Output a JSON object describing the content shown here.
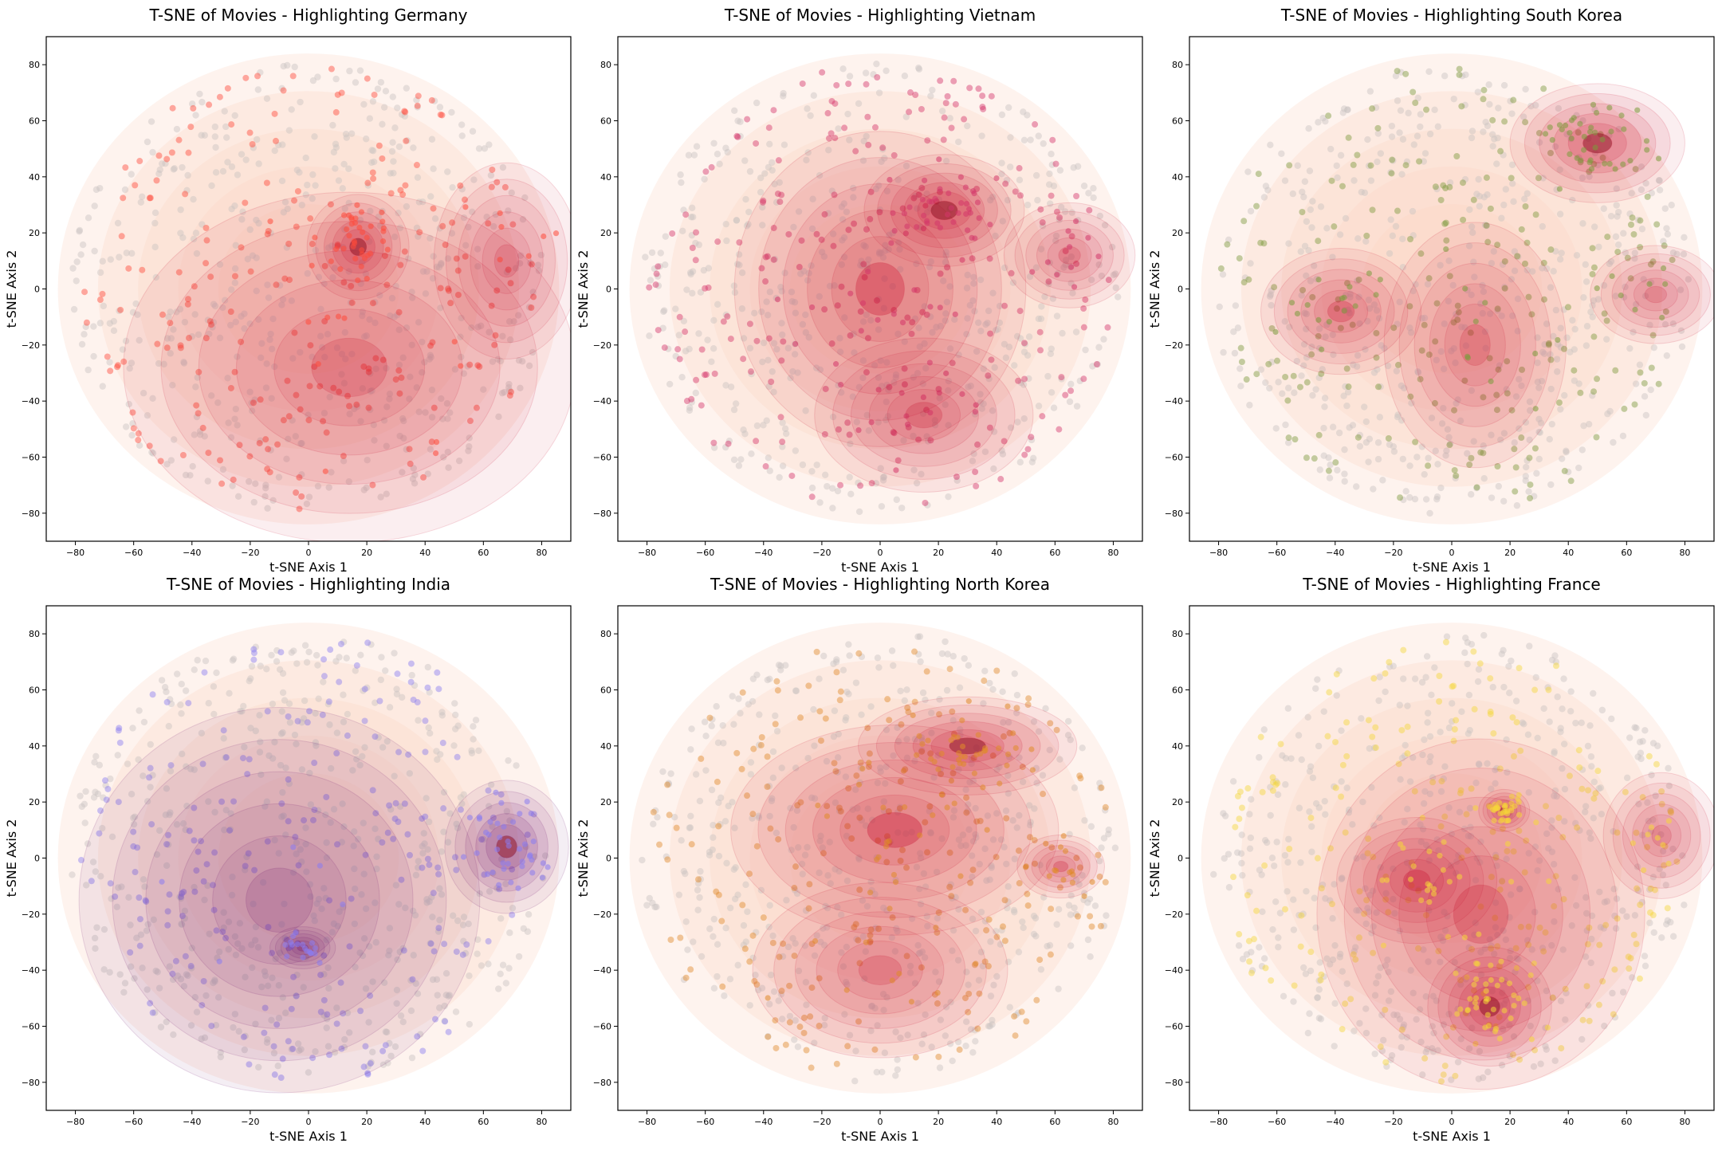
{
  "chart_data": [
    {
      "type": "scatter",
      "title": "T-SNE of Movies - Highlighting Germany",
      "xlabel": "t-SNE Axis 1",
      "ylabel": "t-SNE Axis 2",
      "xlim": [
        -90,
        90
      ],
      "ylim": [
        -90,
        90
      ],
      "xticks": [
        -80,
        -60,
        -40,
        -20,
        0,
        20,
        40,
        60,
        80
      ],
      "yticks": [
        -80,
        -60,
        -40,
        -20,
        0,
        20,
        40,
        60,
        80
      ],
      "grid": false,
      "highlight_color": "#ff4a3a",
      "kde_color": "#c8102e",
      "kde_peaks": [
        {
          "x": 17,
          "y": 15,
          "rx": 14,
          "ry": 15,
          "level": 1.0
        },
        {
          "x": 14,
          "y": -28,
          "rx": 62,
          "ry": 50,
          "level": 0.25
        },
        {
          "x": 68,
          "y": 10,
          "rx": 20,
          "ry": 28,
          "level": 0.18
        }
      ]
    },
    {
      "type": "scatter",
      "title": "T-SNE of Movies - Highlighting Vietnam",
      "xlabel": "t-SNE Axis 1",
      "ylabel": "t-SNE Axis 2",
      "xlim": [
        -90,
        90
      ],
      "ylim": [
        -90,
        90
      ],
      "xticks": [
        -80,
        -60,
        -40,
        -20,
        0,
        20,
        40,
        60,
        80
      ],
      "yticks": [
        -80,
        -60,
        -40,
        -20,
        0,
        20,
        40,
        60,
        80
      ],
      "grid": false,
      "highlight_color": "#d4366a",
      "kde_color": "#c8102e",
      "kde_peaks": [
        {
          "x": 22,
          "y": 28,
          "rx": 22,
          "ry": 16,
          "level": 1.0
        },
        {
          "x": 0,
          "y": 0,
          "rx": 40,
          "ry": 45,
          "level": 0.55
        },
        {
          "x": 15,
          "y": -45,
          "rx": 30,
          "ry": 22,
          "level": 0.35
        },
        {
          "x": 65,
          "y": 12,
          "rx": 18,
          "ry": 15,
          "level": 0.25
        }
      ]
    },
    {
      "type": "scatter",
      "title": "T-SNE of Movies - Highlighting South Korea",
      "xlabel": "t-SNE Axis 1",
      "ylabel": "t-SNE Axis 2",
      "xlim": [
        -90,
        90
      ],
      "ylim": [
        -90,
        90
      ],
      "xticks": [
        -80,
        -60,
        -40,
        -20,
        0,
        20,
        40,
        60,
        80
      ],
      "yticks": [
        -80,
        -60,
        -40,
        -20,
        0,
        20,
        40,
        60,
        80
      ],
      "grid": false,
      "highlight_color": "#7c9a3c",
      "kde_color": "#c8102e",
      "kde_peaks": [
        {
          "x": 50,
          "y": 52,
          "rx": 24,
          "ry": 17,
          "level": 1.0
        },
        {
          "x": -38,
          "y": -8,
          "rx": 22,
          "ry": 18,
          "level": 0.4
        },
        {
          "x": 8,
          "y": -20,
          "rx": 25,
          "ry": 35,
          "level": 0.25
        },
        {
          "x": 70,
          "y": -2,
          "rx": 18,
          "ry": 14,
          "level": 0.2
        }
      ]
    },
    {
      "type": "scatter",
      "title": "T-SNE of Movies - Highlighting India",
      "xlabel": "t-SNE Axis 1",
      "ylabel": "t-SNE Axis 2",
      "xlim": [
        -90,
        90
      ],
      "ylim": [
        -90,
        90
      ],
      "xticks": [
        -80,
        -60,
        -40,
        -20,
        0,
        20,
        40,
        60,
        80
      ],
      "yticks": [
        -80,
        -60,
        -40,
        -20,
        0,
        20,
        40,
        60,
        80
      ],
      "grid": false,
      "highlight_color": "#8a7cf0",
      "kde_color": "#6a0d6a",
      "kde_peaks": [
        {
          "x": 68,
          "y": 4,
          "rx": 17,
          "ry": 19,
          "level": 1.0
        },
        {
          "x": -2,
          "y": -32,
          "rx": 9,
          "ry": 6,
          "level": 0.45
        },
        {
          "x": -10,
          "y": -15,
          "rx": 55,
          "ry": 55,
          "level": 0.15
        }
      ]
    },
    {
      "type": "scatter",
      "title": "T-SNE of Movies - Highlighting North Korea",
      "xlabel": "t-SNE Axis 1",
      "ylabel": "t-SNE Axis 2",
      "xlim": [
        -90,
        90
      ],
      "ylim": [
        -90,
        90
      ],
      "xticks": [
        -80,
        -60,
        -40,
        -20,
        0,
        20,
        40,
        60,
        80
      ],
      "yticks": [
        -80,
        -60,
        -40,
        -20,
        0,
        20,
        40,
        60,
        80
      ],
      "grid": false,
      "highlight_color": "#e08a2a",
      "kde_color": "#c8102e",
      "kde_peaks": [
        {
          "x": 30,
          "y": 40,
          "rx": 30,
          "ry": 14,
          "level": 1.0
        },
        {
          "x": 5,
          "y": 10,
          "rx": 45,
          "ry": 30,
          "level": 0.6
        },
        {
          "x": 62,
          "y": -3,
          "rx": 12,
          "ry": 9,
          "level": 0.4
        },
        {
          "x": 0,
          "y": -40,
          "rx": 35,
          "ry": 25,
          "level": 0.25
        }
      ]
    },
    {
      "type": "scatter",
      "title": "T-SNE of Movies - Highlighting France",
      "xlabel": "t-SNE Axis 1",
      "ylabel": "t-SNE Axis 2",
      "xlim": [
        -90,
        90
      ],
      "ylim": [
        -90,
        90
      ],
      "xticks": [
        -80,
        -60,
        -40,
        -20,
        0,
        20,
        40,
        60,
        80
      ],
      "yticks": [
        -80,
        -60,
        -40,
        -20,
        0,
        20,
        40,
        60,
        80
      ],
      "grid": false,
      "highlight_color": "#f5d63a",
      "kde_color": "#c8102e",
      "kde_peaks": [
        {
          "x": 13,
          "y": -53,
          "rx": 17,
          "ry": 17,
          "level": 1.0
        },
        {
          "x": 18,
          "y": 17,
          "rx": 7,
          "ry": 6,
          "level": 0.9
        },
        {
          "x": -12,
          "y": -8,
          "rx": 22,
          "ry": 18,
          "level": 0.5
        },
        {
          "x": 10,
          "y": -20,
          "rx": 45,
          "ry": 50,
          "level": 0.35
        },
        {
          "x": 72,
          "y": 8,
          "rx": 16,
          "ry": 18,
          "level": 0.2
        }
      ]
    }
  ]
}
